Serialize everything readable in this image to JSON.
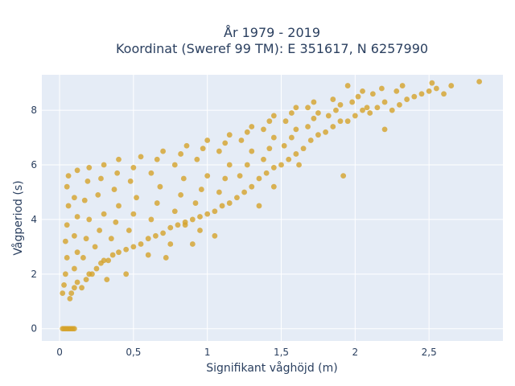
{
  "chart_data": {
    "type": "scatter",
    "title": "År 1979 - 2019",
    "subtitle": "Koordinat (Sweref 99 TM): E 351617, N 6257990",
    "xlabel": "Signifikant våghöjd (m)",
    "ylabel": "Vågperiod (s)",
    "xlim": [
      -0.12,
      3.0
    ],
    "ylim": [
      -0.45,
      9.3
    ],
    "xticks": [
      0,
      0.5,
      1,
      1.5,
      2,
      2.5
    ],
    "xtick_labels": [
      "0",
      "0,5",
      "1",
      "1,5",
      "2",
      "2,5"
    ],
    "yticks": [
      0,
      2,
      4,
      6,
      8
    ],
    "ytick_labels": [
      "0",
      "2",
      "4",
      "6",
      "8"
    ],
    "grid": true,
    "colors": {
      "marker": "#d4a32a",
      "plot_background": "#e5ecf6",
      "grid": "#ffffff"
    },
    "series": [
      {
        "points": [
          [
            0.02,
            0
          ],
          [
            0.03,
            0
          ],
          [
            0.04,
            0
          ],
          [
            0.05,
            0
          ],
          [
            0.06,
            0
          ],
          [
            0.07,
            0
          ],
          [
            0.08,
            0
          ],
          [
            0.09,
            0
          ],
          [
            0.1,
            0
          ],
          [
            0.02,
            1.3
          ],
          [
            0.03,
            1.6
          ],
          [
            0.04,
            2.0
          ],
          [
            0.05,
            2.6
          ],
          [
            0.04,
            3.2
          ],
          [
            0.05,
            3.8
          ],
          [
            0.06,
            4.5
          ],
          [
            0.05,
            5.2
          ],
          [
            0.06,
            5.6
          ],
          [
            0.07,
            1.1
          ],
          [
            0.08,
            1.3
          ],
          [
            0.1,
            1.5
          ],
          [
            0.12,
            1.7
          ],
          [
            0.1,
            2.2
          ],
          [
            0.12,
            2.8
          ],
          [
            0.1,
            3.4
          ],
          [
            0.12,
            4.1
          ],
          [
            0.1,
            4.8
          ],
          [
            0.12,
            5.8
          ],
          [
            0.15,
            1.5
          ],
          [
            0.18,
            1.8
          ],
          [
            0.2,
            2.0
          ],
          [
            0.16,
            2.6
          ],
          [
            0.18,
            3.3
          ],
          [
            0.2,
            4.0
          ],
          [
            0.17,
            4.7
          ],
          [
            0.19,
            5.4
          ],
          [
            0.2,
            5.9
          ],
          [
            0.22,
            2.0
          ],
          [
            0.25,
            2.2
          ],
          [
            0.28,
            2.4
          ],
          [
            0.3,
            2.5
          ],
          [
            0.24,
            3.0
          ],
          [
            0.27,
            3.6
          ],
          [
            0.3,
            4.2
          ],
          [
            0.26,
            4.9
          ],
          [
            0.28,
            5.5
          ],
          [
            0.3,
            6.0
          ],
          [
            0.33,
            2.5
          ],
          [
            0.36,
            2.7
          ],
          [
            0.4,
            2.8
          ],
          [
            0.35,
            3.3
          ],
          [
            0.38,
            3.9
          ],
          [
            0.4,
            4.5
          ],
          [
            0.37,
            5.1
          ],
          [
            0.39,
            5.7
          ],
          [
            0.4,
            6.2
          ],
          [
            0.45,
            2.9
          ],
          [
            0.5,
            3.0
          ],
          [
            0.55,
            3.1
          ],
          [
            0.47,
            3.6
          ],
          [
            0.5,
            4.2
          ],
          [
            0.52,
            4.8
          ],
          [
            0.48,
            5.4
          ],
          [
            0.5,
            5.9
          ],
          [
            0.55,
            6.3
          ],
          [
            0.6,
            3.3
          ],
          [
            0.65,
            3.4
          ],
          [
            0.7,
            3.5
          ],
          [
            0.62,
            4.0
          ],
          [
            0.66,
            4.6
          ],
          [
            0.68,
            5.2
          ],
          [
            0.62,
            5.7
          ],
          [
            0.66,
            6.2
          ],
          [
            0.7,
            6.5
          ],
          [
            0.75,
            3.7
          ],
          [
            0.8,
            3.8
          ],
          [
            0.85,
            3.9
          ],
          [
            0.78,
            4.3
          ],
          [
            0.82,
            4.9
          ],
          [
            0.84,
            5.5
          ],
          [
            0.78,
            6.0
          ],
          [
            0.82,
            6.4
          ],
          [
            0.86,
            6.7
          ],
          [
            0.9,
            4.0
          ],
          [
            0.95,
            4.1
          ],
          [
            1.0,
            4.2
          ],
          [
            0.92,
            4.6
          ],
          [
            0.96,
            5.1
          ],
          [
            1.0,
            5.6
          ],
          [
            0.93,
            6.2
          ],
          [
            0.97,
            6.6
          ],
          [
            1.0,
            6.9
          ],
          [
            1.05,
            4.3
          ],
          [
            1.1,
            4.5
          ],
          [
            1.15,
            4.6
          ],
          [
            1.08,
            5.0
          ],
          [
            1.12,
            5.5
          ],
          [
            1.15,
            6.0
          ],
          [
            1.08,
            6.5
          ],
          [
            1.12,
            6.8
          ],
          [
            1.15,
            7.1
          ],
          [
            1.2,
            4.8
          ],
          [
            1.25,
            5.0
          ],
          [
            1.3,
            5.2
          ],
          [
            1.22,
            5.6
          ],
          [
            1.27,
            6.0
          ],
          [
            1.3,
            6.5
          ],
          [
            1.23,
            6.9
          ],
          [
            1.27,
            7.2
          ],
          [
            1.3,
            7.4
          ],
          [
            1.35,
            5.5
          ],
          [
            1.4,
            5.7
          ],
          [
            1.45,
            5.9
          ],
          [
            1.38,
            6.2
          ],
          [
            1.42,
            6.6
          ],
          [
            1.45,
            7.0
          ],
          [
            1.38,
            7.3
          ],
          [
            1.42,
            7.6
          ],
          [
            1.45,
            7.8
          ],
          [
            1.5,
            6.0
          ],
          [
            1.55,
            6.2
          ],
          [
            1.6,
            6.4
          ],
          [
            1.52,
            6.7
          ],
          [
            1.57,
            7.0
          ],
          [
            1.6,
            7.3
          ],
          [
            1.53,
            7.6
          ],
          [
            1.57,
            7.9
          ],
          [
            1.6,
            8.1
          ],
          [
            1.65,
            6.6
          ],
          [
            1.7,
            6.9
          ],
          [
            1.75,
            7.1
          ],
          [
            1.68,
            7.4
          ],
          [
            1.72,
            7.7
          ],
          [
            1.75,
            7.9
          ],
          [
            1.68,
            8.1
          ],
          [
            1.72,
            8.3
          ],
          [
            1.8,
            7.2
          ],
          [
            1.85,
            7.4
          ],
          [
            1.9,
            7.6
          ],
          [
            1.82,
            7.8
          ],
          [
            1.87,
            8.0
          ],
          [
            1.9,
            8.2
          ],
          [
            1.85,
            8.4
          ],
          [
            1.95,
            7.6
          ],
          [
            2.0,
            7.8
          ],
          [
            2.05,
            8.0
          ],
          [
            1.98,
            8.3
          ],
          [
            2.02,
            8.5
          ],
          [
            2.05,
            8.7
          ],
          [
            1.95,
            8.9
          ],
          [
            2.1,
            7.9
          ],
          [
            2.15,
            8.1
          ],
          [
            2.2,
            8.3
          ],
          [
            2.12,
            8.6
          ],
          [
            2.18,
            8.8
          ],
          [
            2.25,
            8.0
          ],
          [
            2.3,
            8.2
          ],
          [
            2.35,
            8.4
          ],
          [
            2.28,
            8.7
          ],
          [
            2.32,
            8.9
          ],
          [
            2.4,
            8.5
          ],
          [
            2.45,
            8.6
          ],
          [
            2.5,
            8.7
          ],
          [
            2.55,
            8.8
          ],
          [
            2.6,
            8.6
          ],
          [
            2.65,
            8.9
          ],
          [
            2.52,
            9.0
          ],
          [
            2.84,
            9.05
          ],
          [
            2.2,
            7.3
          ],
          [
            2.08,
            8.1
          ],
          [
            1.92,
            5.6
          ],
          [
            1.62,
            6.0
          ],
          [
            1.45,
            5.2
          ],
          [
            1.35,
            4.5
          ],
          [
            1.05,
            3.4
          ],
          [
            0.9,
            3.1
          ],
          [
            0.72,
            2.6
          ],
          [
            0.45,
            2.0
          ],
          [
            0.32,
            1.8
          ],
          [
            0.85,
            3.8
          ],
          [
            0.75,
            3.1
          ],
          [
            0.95,
            3.6
          ],
          [
            0.6,
            2.7
          ]
        ]
      }
    ]
  }
}
